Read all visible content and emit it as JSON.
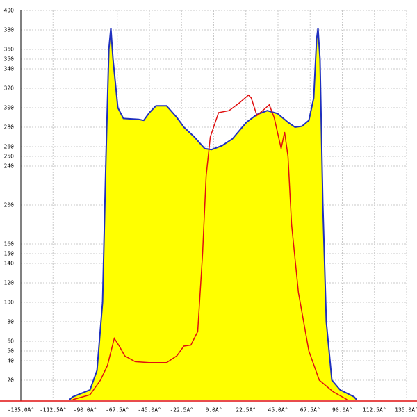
{
  "chart_data": {
    "type": "area",
    "xlim": [
      -135,
      135
    ],
    "ylim": [
      0,
      400
    ],
    "xticks": [
      {
        "value": -135,
        "label": "-135.0Â°"
      },
      {
        "value": -112.5,
        "label": "-112.5Â°"
      },
      {
        "value": -90,
        "label": "-90.0Â°"
      },
      {
        "value": -67.5,
        "label": "-67.5Â°"
      },
      {
        "value": -45,
        "label": "-45.0Â°"
      },
      {
        "value": -22.5,
        "label": "-22.5Â°"
      },
      {
        "value": 0,
        "label": "0.0Â°"
      },
      {
        "value": 22.5,
        "label": "22.5Â°"
      },
      {
        "value": 45,
        "label": "45.0Â°"
      },
      {
        "value": 67.5,
        "label": "67.5Â°"
      },
      {
        "value": 90,
        "label": "90.0Â°"
      },
      {
        "value": 112.5,
        "label": "112.5Â°"
      },
      {
        "value": 135,
        "label": "135.0Â°"
      }
    ],
    "yticks": [
      20,
      40,
      50,
      60,
      80,
      100,
      120,
      140,
      150,
      160,
      200,
      240,
      250,
      260,
      280,
      300,
      320,
      340,
      350,
      360,
      380,
      400
    ],
    "grid": true,
    "series": [
      {
        "type": "area",
        "color": "#1f2fbf",
        "fill": "#ffff00",
        "x": [
          -101,
          -98.5,
          -86.6,
          -81.7,
          -77.8,
          -75.4,
          -73.4,
          -72,
          -70.5,
          -67.1,
          -63.2,
          -52.5,
          -49,
          -45,
          -40.4,
          -33,
          -25.8,
          -20.9,
          -13.6,
          -6.3,
          -1.5,
          5.8,
          13.1,
          22.9,
          30.2,
          37.5,
          44.7,
          52,
          56.9,
          61.8,
          66.6,
          70,
          72,
          73,
          74.4,
          76.4,
          78.8,
          82.7,
          88.5,
          98.2,
          100
        ],
        "values": [
          0,
          3,
          10,
          30,
          100,
          250,
          360,
          382,
          350,
          300,
          289,
          288,
          287,
          295,
          302,
          302,
          290,
          280,
          270,
          258,
          257,
          261,
          268,
          285,
          293,
          297,
          294,
          285,
          280,
          281,
          287,
          310,
          370,
          382,
          350,
          200,
          80,
          20,
          10,
          3,
          0
        ]
      },
      {
        "type": "line",
        "color": "#e01010",
        "x": [
          -98.7,
          -86.6,
          -79.3,
          -74.4,
          -69.6,
          -66.1,
          -62.3,
          -55,
          -45.2,
          -33,
          -25.8,
          -20.9,
          -16,
          -11.2,
          -7.8,
          -5.3,
          -2.4,
          3.4,
          10.7,
          18,
          24.3,
          26.3,
          30.2,
          35,
          38.9,
          42.3,
          47.2,
          49.6,
          52,
          54.5,
          59.3,
          66.6,
          73.9,
          83.7,
          93.4
        ],
        "values": [
          0,
          5,
          20,
          35,
          63,
          55,
          45,
          39,
          38,
          38,
          45,
          55,
          56,
          70,
          150,
          230,
          270,
          295,
          297,
          305,
          313,
          310,
          292,
          298,
          303,
          290,
          258,
          275,
          250,
          180,
          110,
          50,
          20,
          8,
          0
        ]
      }
    ]
  }
}
